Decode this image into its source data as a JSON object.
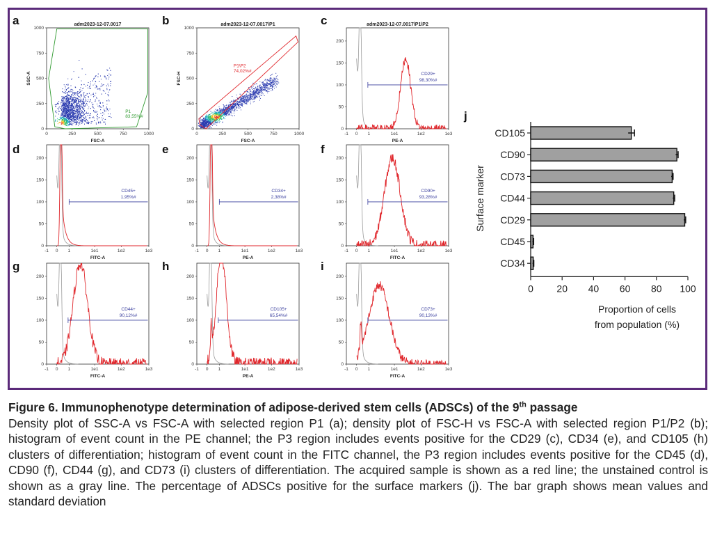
{
  "figure": {
    "number_label": "Figure 6.",
    "title": "Immunophenotype determination of adipose-derived stem cells (ADSCs) of the 9",
    "title_sup": "th",
    "title_end": " passage",
    "description": "Density plot of SSC-A vs FSC-A with selected region P1 (a); density plot of FSC-H vs FSC-A with selected region P1/P2 (b); histogram of event count in the PE channel; the P3 region includes events positive for the CD29 (c), CD34 (e), and CD105 (h) clusters of differentiation; histogram of event count in the FITC channel, the P3 region includes events positive for the CD45 (d), CD90 (f), CD44 (g), and CD73 (i) clusters of differentiation. The acquired sample is shown as a red line; the unstained control is shown as a gray line. The percentage of ADSCs positive for the surface markers (j). The bar graph shows mean values and standard deviation"
  },
  "colors": {
    "frame": "#5b2a7a",
    "sample": "#e0262b",
    "control": "#9a9a9a",
    "gate_blue": "#3a3f9e",
    "gate_green": "#2f9a2f",
    "bar": "#a0a0a0"
  },
  "panels": {
    "a": {
      "letter": "a",
      "title": "adm2023-12-07.0017",
      "xlabel": "FSC-A",
      "ylabel": "SSC-A",
      "gate_name": "P1",
      "gate_value": "83,55%#",
      "xticks": [
        "0",
        "250",
        "500",
        "750",
        "1000"
      ],
      "yticks": [
        "0",
        "250",
        "500",
        "750",
        "1000"
      ]
    },
    "b": {
      "letter": "b",
      "title": "adm2023-12-07.0017\\P1",
      "xlabel": "FSC-A",
      "ylabel": "FSC-H",
      "gate_name": "P1\\P2",
      "gate_value": "74,02%#",
      "xticks": [
        "0",
        "250",
        "500",
        "750",
        "1000"
      ],
      "yticks": [
        "0",
        "250",
        "500",
        "750",
        "1000"
      ]
    },
    "c": {
      "letter": "c",
      "title": "adm2023-12-07.0017\\P1\\P2",
      "xlabel": "PE-A",
      "gate_name": "CD29+",
      "gate_value": "98,30%#",
      "yticks": [
        "0",
        "50",
        "100",
        "150",
        "200"
      ],
      "xticks": [
        "-1",
        "0",
        "1",
        "1e1",
        "1e2",
        "1e3"
      ],
      "peak": 160
    },
    "d": {
      "letter": "d",
      "xlabel": "FITC-A",
      "gate_name": "CD45+",
      "gate_value": "1,95%#",
      "yticks": [
        "0",
        "50",
        "100",
        "150",
        "200"
      ],
      "xticks": [
        "-1",
        "0",
        "1",
        "1e1",
        "1e2",
        "1e3"
      ]
    },
    "e": {
      "letter": "e",
      "xlabel": "PE-A",
      "gate_name": "CD34+",
      "gate_value": "2,38%#",
      "yticks": [
        "0",
        "50",
        "100",
        "150",
        "200"
      ],
      "xticks": [
        "-1",
        "0",
        "1",
        "1e1",
        "1e2",
        "1e3"
      ]
    },
    "f": {
      "letter": "f",
      "xlabel": "FITC-A",
      "gate_name": "CD90+",
      "gate_value": "93,28%#",
      "yticks": [
        "0",
        "50",
        "100",
        "150",
        "200"
      ],
      "xticks": [
        "-1",
        "0",
        "1",
        "1e1",
        "1e2",
        "1e3"
      ],
      "peak": 200
    },
    "g": {
      "letter": "g",
      "xlabel": "FITC-A",
      "gate_name": "CD44+",
      "gate_value": "90,12%#",
      "yticks": [
        "0",
        "50",
        "100",
        "150",
        "200"
      ],
      "xticks": [
        "-1",
        "0",
        "1",
        "1e1",
        "1e2",
        "1e3"
      ],
      "peak": 230
    },
    "h": {
      "letter": "h",
      "xlabel": "PE-A",
      "gate_name": "CD105+",
      "gate_value": "65,54%#",
      "yticks": [
        "0",
        "50",
        "100",
        "150",
        "200"
      ],
      "xticks": [
        "-1",
        "0",
        "1",
        "1e1",
        "1e2",
        "1e3"
      ],
      "peak": 250
    },
    "i": {
      "letter": "i",
      "xlabel": "FITC-A",
      "gate_name": "CD73+",
      "gate_value": "90,13%#",
      "yticks": [
        "0",
        "50",
        "100",
        "150",
        "200"
      ],
      "xticks": [
        "-1",
        "0",
        "1",
        "1e1",
        "1e2",
        "1e3"
      ],
      "peak": 180
    }
  },
  "chart_data": {
    "type": "bar",
    "orientation": "horizontal",
    "panel_label": "j",
    "categories": [
      "CD105",
      "CD90",
      "CD73",
      "CD44",
      "CD29",
      "CD45",
      "CD34"
    ],
    "values": [
      64,
      93,
      90,
      91,
      98,
      1.5,
      1.6
    ],
    "errors": [
      2,
      0.8,
      0.6,
      0.6,
      0.6,
      0.4,
      0.4
    ],
    "xlabel_line1": "Proportion of cells",
    "xlabel_line2": "from population (%)",
    "ylabel": "Surface marker",
    "xticks": [
      "0",
      "20",
      "40",
      "60",
      "80",
      "100"
    ],
    "xlim": [
      0,
      100
    ]
  }
}
